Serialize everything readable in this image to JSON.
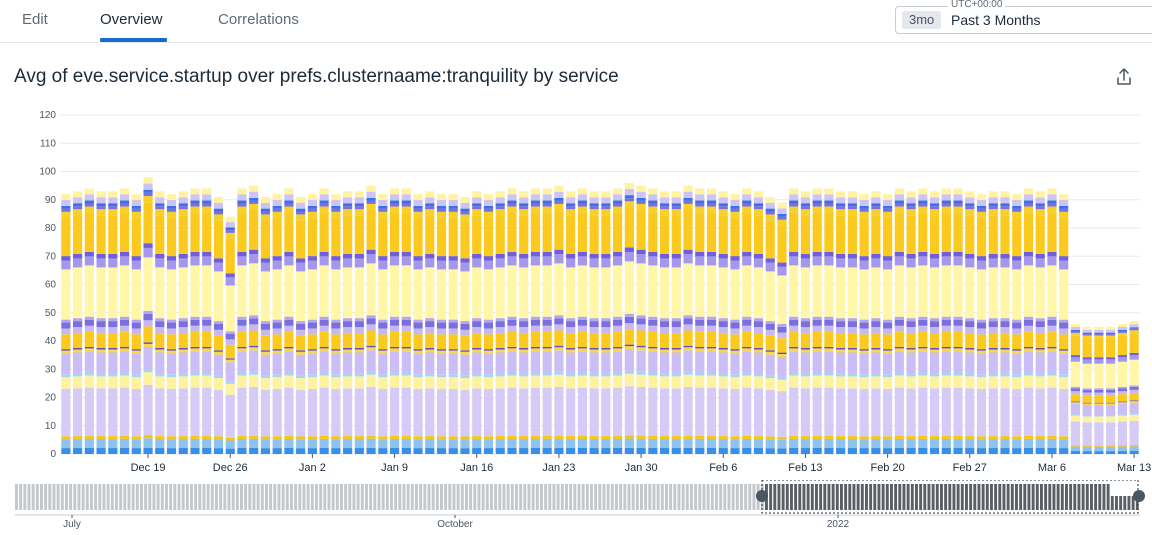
{
  "tabs": [
    "Edit",
    "Overview",
    "Correlations"
  ],
  "time": {
    "tz": "UTC+00:00",
    "chip": "3mo",
    "label": "Past 3 Months"
  },
  "icons": {
    "share": "share-icon"
  },
  "chart_data": {
    "type": "bar",
    "stacked": true,
    "title": "Avg of eve.service.startup over prefs.clusternaame:tranquility by service",
    "ylim": [
      0,
      120
    ],
    "yticks": [
      0,
      10,
      20,
      30,
      40,
      50,
      60,
      70,
      80,
      90,
      100,
      110,
      120
    ],
    "grid": true,
    "xticks": [
      {
        "label": "Dec 19",
        "bar": 7
      },
      {
        "label": "Dec 26",
        "bar": 14
      },
      {
        "label": "Jan 2",
        "bar": 21
      },
      {
        "label": "Jan 9",
        "bar": 28
      },
      {
        "label": "Jan 16",
        "bar": 35
      },
      {
        "label": "Jan 23",
        "bar": 42
      },
      {
        "label": "Jan 30",
        "bar": 49
      },
      {
        "label": "Feb 6",
        "bar": 56
      },
      {
        "label": "Feb 13",
        "bar": 63
      },
      {
        "label": "Feb 20",
        "bar": 70
      },
      {
        "label": "Feb 27",
        "bar": 77
      },
      {
        "label": "Mar 6",
        "bar": 84
      },
      {
        "label": "Mar 13",
        "bar": 91
      }
    ],
    "layers": [
      {
        "color": "#3b8ee8",
        "value": 2
      },
      {
        "color": "#8cc3f2",
        "value": 3
      },
      {
        "color": "#f5c518",
        "value": 1
      },
      {
        "color": "#d6cbf7",
        "value": 16
      },
      {
        "color": "#fff29e",
        "value": 4
      },
      {
        "color": "#a8d3f5",
        "value": 1
      },
      {
        "color": "#cbbdf5",
        "value": 7
      },
      {
        "color": "#f9d74a",
        "value": 1
      },
      {
        "color": "#5b4fc9",
        "value": 0.5
      },
      {
        "color": "#fcc91f",
        "value": 5
      },
      {
        "color": "#c7b8f2",
        "value": 2
      },
      {
        "color": "#7b6fe0",
        "value": 2
      },
      {
        "color": "#b3a6ef",
        "value": 1
      },
      {
        "color": "#fff6a8",
        "value": 17
      },
      {
        "color": "#a597ec",
        "value": 3
      },
      {
        "color": "#6f5fdc",
        "value": 1.5
      },
      {
        "color": "#fcc91f",
        "value": 13
      },
      {
        "color": "#f7d02a",
        "value": 2
      },
      {
        "color": "#7b6fe0",
        "value": 1
      },
      {
        "color": "#3d6fe6",
        "value": 1
      },
      {
        "color": "#cec3f6",
        "value": 2
      },
      {
        "color": "#fff3a3",
        "value": 2
      }
    ],
    "totals": [
      92,
      93,
      94,
      93,
      93,
      94,
      92,
      98,
      93,
      92,
      93,
      94,
      94,
      91,
      84,
      94,
      95,
      91,
      92,
      94,
      91,
      92,
      94,
      92,
      93,
      93,
      95,
      92,
      94,
      94,
      92,
      93,
      92,
      92,
      91,
      93,
      92,
      93,
      94,
      93,
      94,
      94,
      95,
      93,
      94,
      93,
      93,
      94,
      96,
      95,
      94,
      93,
      93,
      95,
      94,
      94,
      93,
      92,
      94,
      93,
      91,
      89,
      94,
      93,
      94,
      94,
      93,
      93,
      92,
      93,
      92,
      94,
      93,
      94,
      93,
      94,
      94,
      93,
      92,
      93,
      93,
      92,
      94,
      93,
      94,
      92,
      46,
      45,
      45,
      45,
      46,
      47
    ],
    "minimap_labels": [
      "July",
      "October",
      "2022"
    ]
  }
}
